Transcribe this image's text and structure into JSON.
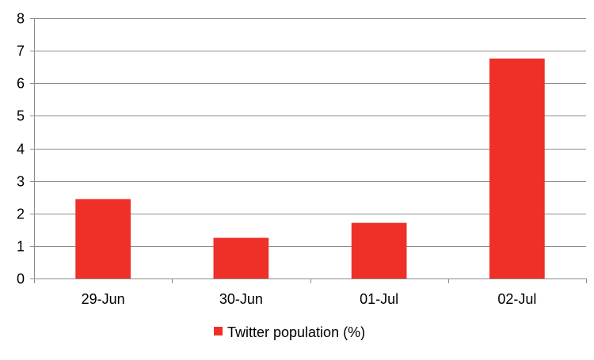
{
  "chart_data": {
    "type": "bar",
    "categories": [
      "29-Jun",
      "30-Jun",
      "01-Jul",
      "02-Jul"
    ],
    "series": [
      {
        "name": "Twitter population (%)",
        "values": [
          2.44,
          1.25,
          1.71,
          6.76
        ],
        "color": "#EE3028"
      }
    ],
    "ylim": [
      0,
      8
    ],
    "yticks": [
      0,
      1,
      2,
      3,
      4,
      5,
      6,
      7,
      8
    ],
    "grid": true,
    "legend_position": "bottom"
  }
}
